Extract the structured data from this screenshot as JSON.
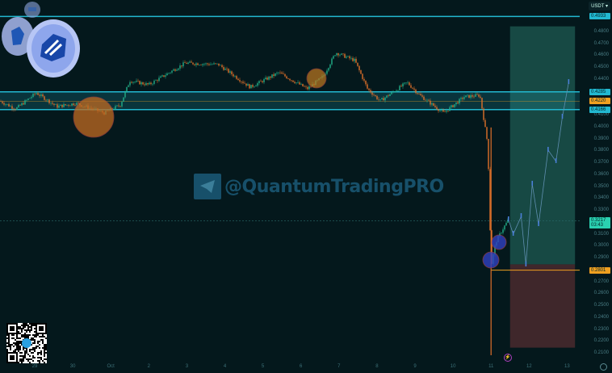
{
  "currency_selector": "USDT",
  "watermark": "@QuantumTradingPRO",
  "colors": {
    "background": "#04181c",
    "up": "#22b08a",
    "down": "#e0702a",
    "level": "#22b8d0",
    "entry": "#f0a020",
    "target_zone": "#1d5a52",
    "stop_zone": "#4a2a2e",
    "projection": "#4a7fd8"
  },
  "price_axis": [
    "0.4800",
    "0.4700",
    "0.4600",
    "0.4500",
    "0.4400",
    "0.4100",
    "0.4000",
    "0.3900",
    "0.3800",
    "0.3700",
    "0.3600",
    "0.3500",
    "0.3400",
    "0.3300",
    "0.3100",
    "0.3000",
    "0.2900",
    "0.2700",
    "0.2600",
    "0.2500",
    "0.2400",
    "0.2300",
    "0.2200",
    "0.2100"
  ],
  "date_axis": [
    "29",
    "30",
    "Oct",
    "2",
    "3",
    "4",
    "5",
    "6",
    "7",
    "8",
    "9",
    "10",
    "11",
    "12",
    "13"
  ],
  "price_tags": [
    {
      "label": "0.4933",
      "kind": "level"
    },
    {
      "label": "0.4285",
      "kind": "level"
    },
    {
      "label": "0.4220",
      "kind": "entry"
    },
    {
      "label": "0.4166",
      "kind": "level"
    },
    {
      "label": "0.3217",
      "countdown": "03:43",
      "kind": "current"
    },
    {
      "label": "0.2801",
      "kind": "entry"
    }
  ],
  "chart_data": {
    "type": "line",
    "ylim": [
      0.205,
      0.5
    ],
    "x_ticks": [
      "29",
      "30",
      "Oct",
      "2",
      "3",
      "4",
      "5",
      "6",
      "7",
      "8",
      "9",
      "10",
      "11",
      "12",
      "13"
    ],
    "price_path": [
      [
        "Sep 28 02:00",
        0.4223
      ],
      [
        "Sep 28 12:00",
        0.4156
      ],
      [
        "Sep 29 01:00",
        0.4291
      ],
      [
        "Sep 29 14:00",
        0.4176
      ],
      [
        "Sep 30 02:00",
        0.4203
      ],
      [
        "Sep 30 20:00",
        0.4122
      ],
      [
        "Oct 1 06:00",
        0.4189
      ],
      [
        "Oct 1 12:00",
        0.4393
      ],
      [
        "Oct 2 00:00",
        0.4359
      ],
      [
        "Oct 2 23:00",
        0.4542
      ],
      [
        "Oct 3 20:00",
        0.4529
      ],
      [
        "Oct 4 16:00",
        0.4339
      ],
      [
        "Oct 5 10:00",
        0.4461
      ],
      [
        "Oct 6 04:00",
        0.4325
      ],
      [
        "Oct 6 14:00",
        0.4427
      ],
      [
        "Oct 6 22:00",
        0.463
      ],
      [
        "Oct 7 10:00",
        0.4563
      ],
      [
        "Oct 7 18:00",
        0.4325
      ],
      [
        "Oct 8 02:00",
        0.4223
      ],
      [
        "Oct 8 19:00",
        0.4379
      ],
      [
        "Oct 9 03:00",
        0.4271
      ],
      [
        "Oct 9 18:00",
        0.4122
      ],
      [
        "Oct 10 07:00",
        0.4257
      ],
      [
        "Oct 10 17:00",
        0.4271
      ],
      [
        "Oct 10 20:00",
        0.402
      ],
      [
        "Oct 10 22:00",
        0.385
      ],
      [
        "Oct 11 00:00",
        0.2833
      ],
      [
        "Oct 11 03:00",
        0.3036
      ],
      [
        "Oct 11 07:00",
        0.3138
      ],
      [
        "Oct 11 11:00",
        0.3226
      ]
    ],
    "wick_low": [
      "Oct 11 00:00",
      0.2086
    ],
    "projection": [
      [
        "Oct 11 11:00",
        0.3226
      ],
      [
        "Oct 11 14:00",
        0.3104
      ],
      [
        "Oct 11 19:00",
        0.3253
      ],
      [
        "Oct 11 22:00",
        0.2846
      ],
      [
        "Oct 12 02:00",
        0.3525
      ],
      [
        "Oct 12 06:00",
        0.3185
      ],
      [
        "Oct 12 12:00",
        0.381
      ],
      [
        "Oct 12 17:00",
        0.3715
      ],
      [
        "Oct 12 21:00",
        0.4088
      ],
      [
        "Oct 13 01:00",
        0.4379
      ]
    ],
    "levels": [
      0.4933,
      0.4285,
      0.422,
      0.4166,
      0.2801
    ],
    "current_price": 0.3217,
    "position": {
      "entry": 0.285,
      "target": 0.485,
      "stop": 0.215,
      "start": "Oct 11 12:00",
      "end": "Oct 13 05:00"
    },
    "grid": false
  }
}
